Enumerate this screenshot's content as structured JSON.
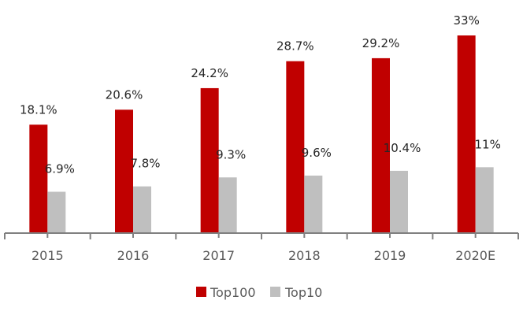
{
  "chart_data": {
    "type": "bar",
    "title": "",
    "xlabel": "",
    "ylabel": "",
    "categories": [
      "2015",
      "2016",
      "2017",
      "2018",
      "2019",
      "2020E"
    ],
    "series": [
      {
        "name": "Top100",
        "color": "#C00000",
        "values": [
          18.1,
          20.6,
          24.2,
          28.7,
          29.2,
          33
        ],
        "labels": [
          "18.1%",
          "20.6%",
          "24.2%",
          "28.7%",
          "29.2%",
          "33%"
        ]
      },
      {
        "name": "Top10",
        "color": "#BFBFBF",
        "values": [
          6.9,
          7.8,
          9.3,
          9.6,
          10.4,
          11
        ],
        "labels": [
          "6.9%",
          "7.8%",
          "9.3%",
          "9.6%",
          "10.4%",
          "11%"
        ]
      }
    ],
    "ylim": [
      0,
      33
    ],
    "grid": false,
    "legend_position": "bottom"
  },
  "legend": {
    "items": [
      "Top100",
      "Top10"
    ]
  }
}
